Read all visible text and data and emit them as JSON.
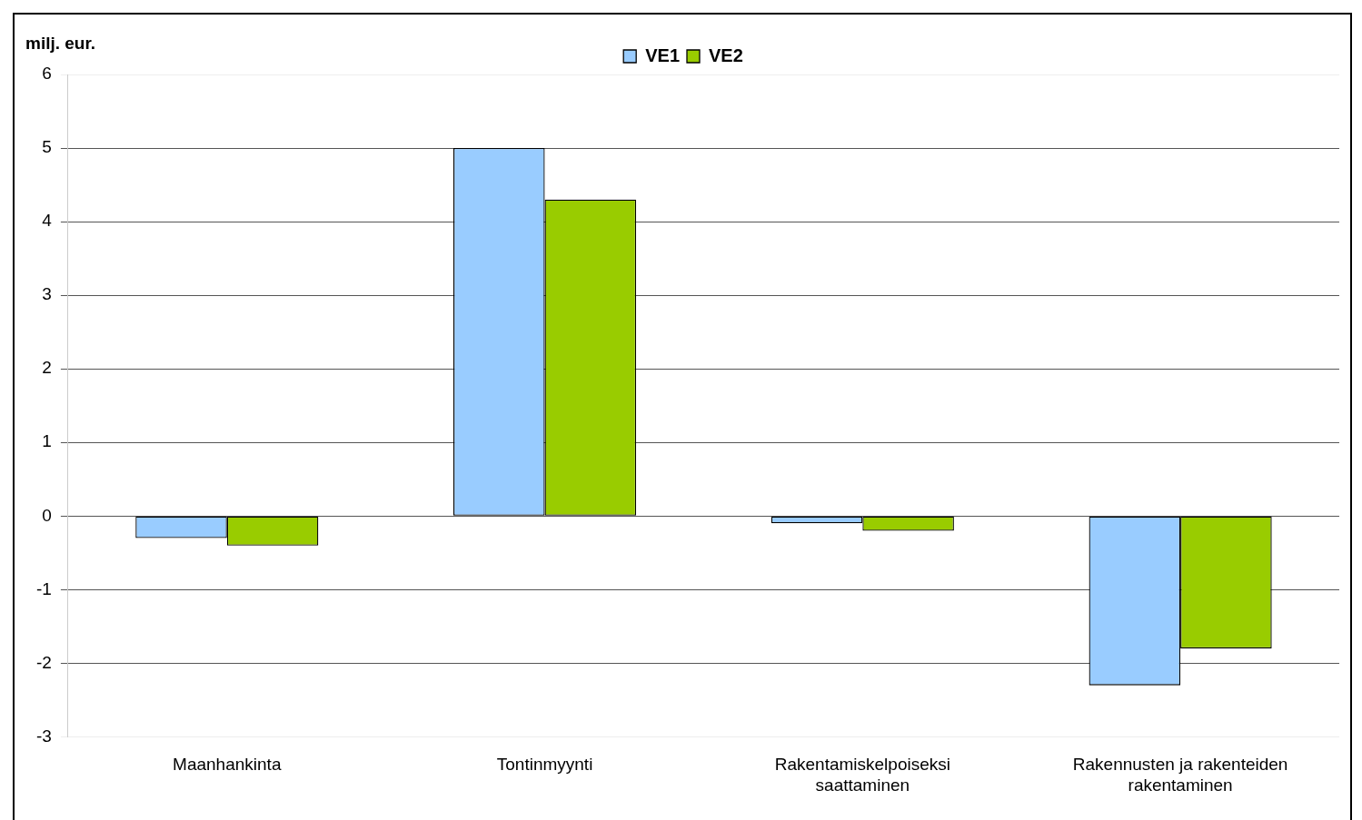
{
  "chart_data": {
    "type": "bar",
    "ylabel": "milj. eur.",
    "categories": [
      "Maanhankinta",
      "Tontinmyynti",
      "Rakentamiskelpoiseksi saattaminen",
      "Rakennusten ja rakenteiden rakentaminen"
    ],
    "series": [
      {
        "name": "VE1",
        "color": "#99ccff",
        "values": [
          -0.3,
          5.0,
          -0.1,
          -2.3
        ]
      },
      {
        "name": "VE2",
        "color": "#99cc00",
        "values": [
          -0.4,
          4.3,
          -0.2,
          -1.8
        ]
      }
    ],
    "ylim": [
      -3,
      6
    ],
    "yticks": [
      -3,
      -2,
      -1,
      0,
      1,
      2,
      3,
      4,
      5,
      6
    ],
    "grid": "y",
    "legend": "top"
  }
}
